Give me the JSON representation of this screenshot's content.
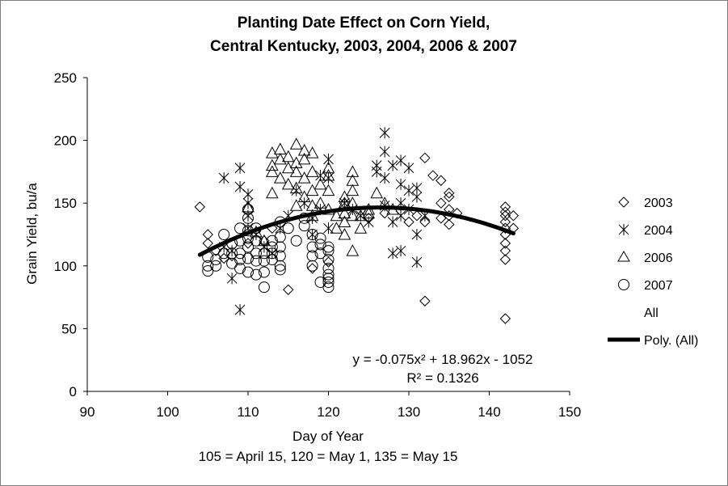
{
  "chart_data": {
    "type": "scatter",
    "title_line1": "Planting Date Effect on Corn Yield,",
    "title_line2": "Central Kentucky, 2003, 2004, 2006 & 2007",
    "xlabel": "Day of Year",
    "xnote": "105 = April 15, 120 = May 1, 135 = May 15",
    "ylabel": "Grain Yield, bu/a",
    "xlim": [
      90,
      150
    ],
    "ylim": [
      0,
      250
    ],
    "xticks": [
      "90",
      "100",
      "110",
      "120",
      "130",
      "140",
      "150"
    ],
    "yticks": [
      "0",
      "50",
      "100",
      "150",
      "200",
      "250"
    ],
    "legend": {
      "s2003": "2003",
      "s2004": "2004",
      "s2006": "2006",
      "s2007": "2007",
      "all": "All",
      "poly": "Poly. (All)"
    },
    "equation": "y = -0.075x² + 18.962x - 1052",
    "r2": "R² = 0.1326",
    "trend": {
      "a": -0.075,
      "b": 18.962,
      "c": -1052,
      "x_from": 104,
      "x_to": 143
    },
    "series": [
      {
        "name": "2003",
        "marker": "diamond",
        "points": [
          [
            104,
            147
          ],
          [
            105,
            125
          ],
          [
            105,
            118
          ],
          [
            106,
            112
          ],
          [
            107,
            106
          ],
          [
            108,
            108
          ],
          [
            110,
            118
          ],
          [
            112,
            120
          ],
          [
            113,
            130
          ],
          [
            115,
            81
          ],
          [
            118,
            98
          ],
          [
            120,
            103
          ],
          [
            122,
            150
          ],
          [
            125,
            138
          ],
          [
            127,
            142
          ],
          [
            130,
            135
          ],
          [
            131,
            140
          ],
          [
            132,
            186
          ],
          [
            132,
            135
          ],
          [
            132,
            72
          ],
          [
            133,
            172
          ],
          [
            134,
            168
          ],
          [
            134,
            150
          ],
          [
            135,
            158
          ],
          [
            135,
            155
          ],
          [
            135,
            145
          ],
          [
            135,
            140
          ],
          [
            135,
            133
          ],
          [
            134,
            138
          ],
          [
            136,
            142
          ],
          [
            142,
            147
          ],
          [
            142,
            143
          ],
          [
            142,
            140
          ],
          [
            142,
            135
          ],
          [
            142,
            130
          ],
          [
            142,
            125
          ],
          [
            142,
            118
          ],
          [
            142,
            112
          ],
          [
            142,
            105
          ],
          [
            142,
            58
          ],
          [
            143,
            140
          ],
          [
            143,
            130
          ]
        ]
      },
      {
        "name": "2004",
        "marker": "asterisk",
        "points": [
          [
            107,
            170
          ],
          [
            107,
            115
          ],
          [
            108,
            90
          ],
          [
            109,
            65
          ],
          [
            109,
            178
          ],
          [
            109,
            163
          ],
          [
            110,
            157
          ],
          [
            110,
            150
          ],
          [
            110,
            140
          ],
          [
            110,
            130
          ],
          [
            108,
            112
          ],
          [
            111,
            125
          ],
          [
            112,
            115
          ],
          [
            113,
            110
          ],
          [
            114,
            130
          ],
          [
            115,
            140
          ],
          [
            116,
            160
          ],
          [
            117,
            150
          ],
          [
            118,
            138
          ],
          [
            118,
            125
          ],
          [
            119,
            172
          ],
          [
            119,
            145
          ],
          [
            120,
            185
          ],
          [
            120,
            170
          ],
          [
            120,
            130
          ],
          [
            122,
            150
          ],
          [
            123,
            145
          ],
          [
            124,
            140
          ],
          [
            125,
            135
          ],
          [
            126,
            180
          ],
          [
            126,
            175
          ],
          [
            127,
            206
          ],
          [
            127,
            191
          ],
          [
            127,
            170
          ],
          [
            127,
            148
          ],
          [
            128,
            110
          ],
          [
            128,
            135
          ],
          [
            128,
            180
          ],
          [
            129,
            140
          ],
          [
            129,
            165
          ],
          [
            129,
            112
          ],
          [
            129,
            150
          ],
          [
            129,
            184
          ],
          [
            130,
            160
          ],
          [
            130,
            145
          ],
          [
            130,
            178
          ],
          [
            131,
            162
          ],
          [
            131,
            155
          ],
          [
            131,
            125
          ],
          [
            131,
            103
          ],
          [
            132,
            140
          ]
        ]
      },
      {
        "name": "2006",
        "marker": "triangle",
        "points": [
          [
            110,
            147
          ],
          [
            111,
            127
          ],
          [
            112,
            120
          ],
          [
            113,
            190
          ],
          [
            113,
            180
          ],
          [
            113,
            175
          ],
          [
            113,
            158
          ],
          [
            114,
            193
          ],
          [
            114,
            185
          ],
          [
            114,
            170
          ],
          [
            115,
            187
          ],
          [
            115,
            178
          ],
          [
            115,
            165
          ],
          [
            116,
            197
          ],
          [
            116,
            182
          ],
          [
            116,
            175
          ],
          [
            116,
            162
          ],
          [
            116,
            148
          ],
          [
            117,
            192
          ],
          [
            117,
            185
          ],
          [
            117,
            170
          ],
          [
            117,
            155
          ],
          [
            118,
            190
          ],
          [
            118,
            175
          ],
          [
            118,
            160
          ],
          [
            118,
            148
          ],
          [
            118,
            140
          ],
          [
            119,
            165
          ],
          [
            119,
            150
          ],
          [
            120,
            178
          ],
          [
            120,
            172
          ],
          [
            120,
            160
          ],
          [
            120,
            145
          ],
          [
            121,
            140
          ],
          [
            121,
            130
          ],
          [
            122,
            155
          ],
          [
            122,
            150
          ],
          [
            122,
            142
          ],
          [
            122,
            135
          ],
          [
            122,
            125
          ],
          [
            123,
            175
          ],
          [
            123,
            168
          ],
          [
            123,
            160
          ],
          [
            123,
            150
          ],
          [
            123,
            140
          ],
          [
            123,
            112
          ],
          [
            124,
            140
          ],
          [
            124,
            130
          ],
          [
            125,
            142
          ],
          [
            125,
            145
          ],
          [
            126,
            158
          ],
          [
            127,
            150
          ],
          [
            128,
            145
          ]
        ]
      },
      {
        "name": "2007",
        "marker": "circle",
        "points": [
          [
            105,
            107
          ],
          [
            105,
            100
          ],
          [
            105,
            96
          ],
          [
            106,
            105
          ],
          [
            106,
            100
          ],
          [
            107,
            110
          ],
          [
            107,
            125
          ],
          [
            108,
            118
          ],
          [
            108,
            110
          ],
          [
            108,
            102
          ],
          [
            109,
            130
          ],
          [
            109,
            120
          ],
          [
            109,
            110
          ],
          [
            109,
            105
          ],
          [
            109,
            98
          ],
          [
            110,
            145
          ],
          [
            110,
            138
          ],
          [
            110,
            128
          ],
          [
            110,
            122
          ],
          [
            110,
            115
          ],
          [
            110,
            106
          ],
          [
            110,
            95
          ],
          [
            111,
            130
          ],
          [
            111,
            120
          ],
          [
            111,
            110
          ],
          [
            111,
            104
          ],
          [
            111,
            93
          ],
          [
            112,
            110
          ],
          [
            112,
            104
          ],
          [
            112,
            95
          ],
          [
            112,
            83
          ],
          [
            113,
            120
          ],
          [
            113,
            115
          ],
          [
            113,
            110
          ],
          [
            113,
            105
          ],
          [
            114,
            135
          ],
          [
            114,
            123
          ],
          [
            114,
            115
          ],
          [
            114,
            108
          ],
          [
            114,
            100
          ],
          [
            114,
            97
          ],
          [
            115,
            130
          ],
          [
            116,
            120
          ],
          [
            117,
            138
          ],
          [
            117,
            132
          ],
          [
            118,
            125
          ],
          [
            118,
            115
          ],
          [
            118,
            108
          ],
          [
            118,
            100
          ],
          [
            119,
            122
          ],
          [
            119,
            117
          ],
          [
            119,
            110
          ],
          [
            119,
            87
          ],
          [
            120,
            115
          ],
          [
            120,
            112
          ],
          [
            120,
            105
          ],
          [
            120,
            98
          ],
          [
            120,
            93
          ],
          [
            120,
            90
          ],
          [
            120,
            87
          ],
          [
            120,
            83
          ]
        ]
      }
    ]
  }
}
